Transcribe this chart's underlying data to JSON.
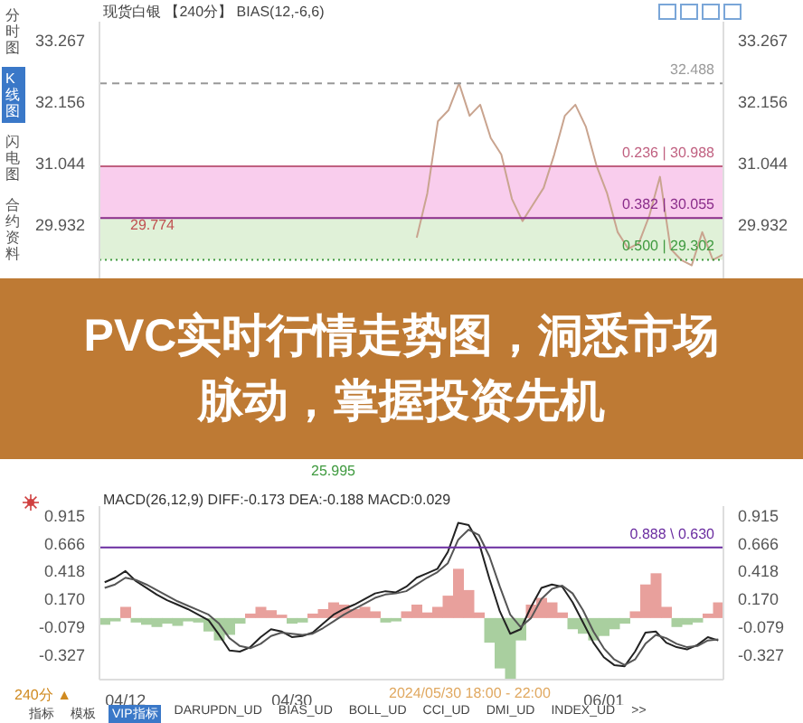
{
  "chart_data": [
    {
      "type": "line",
      "title": "PVC实时行情走势图，洞悉市场脉动，掌握投资先机",
      "subtitle": "现货白银 【240分】 BIAS(12,-6,6)",
      "categories": [
        null,
        null,
        null,
        null,
        null,
        null,
        null,
        null,
        null,
        null,
        null,
        null,
        null,
        null,
        null,
        null,
        null,
        null,
        null,
        null,
        null,
        null,
        null,
        null,
        null,
        null,
        null,
        null,
        null,
        null,
        null,
        null,
        null,
        null,
        null,
        null,
        null,
        null,
        null,
        null,
        null,
        null,
        null,
        null,
        null,
        null,
        null,
        null,
        null,
        null,
        null,
        null,
        null,
        null,
        null,
        null,
        null,
        null,
        null,
        null
      ],
      "series": [
        {
          "color": "#c9a48f",
          "values": [
            null,
            null,
            null,
            null,
            null,
            null,
            null,
            null,
            null,
            null,
            null,
            null,
            null,
            null,
            null,
            null,
            null,
            null,
            null,
            null,
            null,
            null,
            null,
            null,
            null,
            null,
            null,
            null,
            null,
            null,
            29.7,
            30.5,
            31.8,
            32.0,
            32.488,
            31.9,
            32.1,
            31.5,
            31.2,
            30.4,
            30.0,
            30.3,
            30.6,
            31.2,
            31.9,
            32.1,
            31.7,
            31.0,
            30.5,
            29.8,
            29.5,
            29.6,
            30.1,
            30.8,
            29.5,
            29.3,
            29.2,
            29.8,
            29.3,
            29.4
          ]
        }
      ],
      "ylim": [
        25.8,
        33.6
      ],
      "yticks": [
        29.932,
        31.044,
        32.156,
        33.267
      ],
      "y2lim": [
        25.8,
        33.6
      ],
      "y2ticks": [
        29.932,
        31.044,
        32.156,
        33.267
      ],
      "tick_labels": "y",
      "marker": "none",
      "line_style": "solid",
      "ref_lines": [
        {
          "axis": "y",
          "value": 32.488,
          "label": "32.488",
          "color": "#999999",
          "line_style": "dashed"
        },
        {
          "axis": "y",
          "value": 30.988,
          "label": "0.236 | 30.988",
          "color": "#c06080",
          "line_style": "solid"
        },
        {
          "axis": "y",
          "value": 30.055,
          "label": "0.382 | 30.055",
          "color": "#8a2c8a",
          "line_style": "solid"
        },
        {
          "axis": "y",
          "value": 29.302,
          "label": "0.500 | 29.302",
          "color": "#3f9a3f",
          "line_style": "dotted"
        }
      ],
      "bands": [
        {
          "axis": "y",
          "from": 30.055,
          "to": 30.988,
          "color": "#f7b8e6"
        },
        {
          "axis": "y",
          "from": 29.302,
          "to": 30.055,
          "color": "#d3ebc8"
        }
      ],
      "annotations": [
        "分时图",
        "K线图",
        "闪电图",
        "合约资料",
        "29.774",
        "25.995"
      ]
    },
    {
      "type": "line",
      "title": "MACD(26,12,9) DIFF:-0.173 DEA:-0.188 MACD:0.029",
      "categories": [
        null,
        null,
        "04/12",
        null,
        null,
        null,
        null,
        null,
        null,
        null,
        null,
        null,
        null,
        null,
        null,
        null,
        null,
        null,
        "04/30",
        null,
        null,
        null,
        null,
        null,
        null,
        null,
        null,
        null,
        null,
        null,
        null,
        null,
        null,
        null,
        null,
        null,
        null,
        null,
        null,
        null,
        null,
        null,
        null,
        null,
        null,
        null,
        null,
        null,
        "06/01",
        null,
        null,
        null,
        null,
        null,
        null,
        null,
        null,
        null,
        null,
        null
      ],
      "series": [
        {
          "type": "bar",
          "colors": [
            "#a9cf9f",
            "#a9cf9f",
            "#e8a09c",
            "#a9cf9f",
            "#a9cf9f",
            "#a9cf9f",
            "#a9cf9f",
            "#a9cf9f",
            "#a9cf9f",
            "#a9cf9f",
            "#a9cf9f",
            "#a9cf9f",
            "#a9cf9f",
            "#a9cf9f",
            "#e8a09c",
            "#e8a09c",
            "#e8a09c",
            "#e8a09c",
            "#a9cf9f",
            "#a9cf9f",
            "#e8a09c",
            "#e8a09c",
            "#e8a09c",
            "#e8a09c",
            "#e8a09c",
            "#e8a09c",
            "#e8a09c",
            "#a9cf9f",
            "#a9cf9f",
            "#e8a09c",
            "#e8a09c",
            "#e8a09c",
            "#e8a09c",
            "#e8a09c",
            "#e8a09c",
            "#e8a09c",
            "#e8a09c",
            "#a9cf9f",
            "#a9cf9f",
            "#a9cf9f",
            "#a9cf9f",
            "#e8a09c",
            "#e8a09c",
            "#e8a09c",
            "#e8a09c",
            "#a9cf9f",
            "#a9cf9f",
            "#a9cf9f",
            "#a9cf9f",
            "#a9cf9f",
            "#a9cf9f",
            "#e8a09c",
            "#e8a09c",
            "#e8a09c",
            "#e8a09c",
            "#a9cf9f",
            "#a9cf9f",
            "#a9cf9f",
            "#e8a09c",
            "#e8a09c"
          ],
          "values": [
            -0.06,
            -0.03,
            0.1,
            -0.04,
            -0.06,
            -0.08,
            -0.05,
            -0.07,
            -0.03,
            -0.04,
            -0.12,
            -0.2,
            -0.15,
            -0.05,
            0.04,
            0.1,
            0.07,
            0.03,
            -0.05,
            -0.04,
            0.04,
            0.08,
            0.14,
            0.12,
            0.08,
            0.1,
            0.06,
            -0.04,
            -0.03,
            0.06,
            0.12,
            0.05,
            0.1,
            0.2,
            0.44,
            0.25,
            0.05,
            -0.22,
            -0.45,
            -0.55,
            -0.2,
            0.12,
            0.18,
            0.14,
            0.05,
            -0.1,
            -0.14,
            -0.2,
            -0.16,
            -0.1,
            -0.05,
            0.06,
            0.3,
            0.4,
            0.1,
            -0.08,
            -0.06,
            -0.04,
            0.04,
            0.14
          ]
        },
        {
          "color": "#222222",
          "values": [
            0.32,
            0.36,
            0.42,
            0.33,
            0.27,
            0.21,
            0.16,
            0.12,
            0.08,
            0.03,
            -0.02,
            -0.15,
            -0.29,
            -0.3,
            -0.26,
            -0.17,
            -0.1,
            -0.12,
            -0.17,
            -0.16,
            -0.13,
            -0.05,
            0.03,
            0.08,
            0.12,
            0.17,
            0.22,
            0.24,
            0.23,
            0.28,
            0.36,
            0.4,
            0.44,
            0.59,
            0.85,
            0.83,
            0.67,
            0.35,
            0.06,
            -0.14,
            -0.1,
            0.1,
            0.27,
            0.3,
            0.28,
            0.14,
            -0.04,
            -0.22,
            -0.35,
            -0.42,
            -0.43,
            -0.3,
            -0.13,
            -0.12,
            -0.22,
            -0.26,
            -0.28,
            -0.24,
            -0.17,
            -0.2
          ]
        },
        {
          "color": "#555555",
          "values": [
            0.27,
            0.3,
            0.36,
            0.34,
            0.3,
            0.25,
            0.2,
            0.15,
            0.11,
            0.07,
            0.03,
            -0.05,
            -0.18,
            -0.25,
            -0.27,
            -0.23,
            -0.16,
            -0.13,
            -0.14,
            -0.15,
            -0.14,
            -0.09,
            -0.03,
            0.03,
            0.08,
            0.13,
            0.18,
            0.21,
            0.22,
            0.24,
            0.3,
            0.36,
            0.41,
            0.49,
            0.7,
            0.79,
            0.74,
            0.55,
            0.28,
            0.03,
            -0.08,
            0.0,
            0.17,
            0.26,
            0.29,
            0.22,
            0.07,
            -0.12,
            -0.27,
            -0.37,
            -0.42,
            -0.37,
            -0.23,
            -0.15,
            -0.18,
            -0.23,
            -0.26,
            -0.25,
            -0.2,
            -0.19
          ]
        }
      ],
      "ylim": [
        -0.55,
        1.0
      ],
      "yticks": [
        -0.327,
        -0.079,
        {
          "value": 0.17,
          "label": "0.170"
        },
        0.418,
        0.666,
        0.915
      ],
      "y2lim": [
        -0.55,
        1.0
      ],
      "y2ticks": [
        -0.327,
        -0.079,
        {
          "value": 0.17,
          "label": "0.170"
        },
        0.418,
        0.666,
        0.915
      ],
      "marker": "none",
      "line_style": "solid",
      "ref_lines": [
        {
          "axis": "y",
          "value": 0.63,
          "label": "0.888 \\ 0.630",
          "color": "#6a2ca0",
          "line_style": "solid"
        }
      ],
      "annotations": [
        "240分 ▲",
        "2024/05/30 18:00 - 22:00",
        "指标",
        "模板",
        "VIP指标",
        "DARUPDN_UD",
        "BIAS_UD",
        "BOLL_UD",
        "CCI_UD",
        "DMI_UD",
        "INDEX_UD",
        ">>"
      ]
    }
  ]
}
